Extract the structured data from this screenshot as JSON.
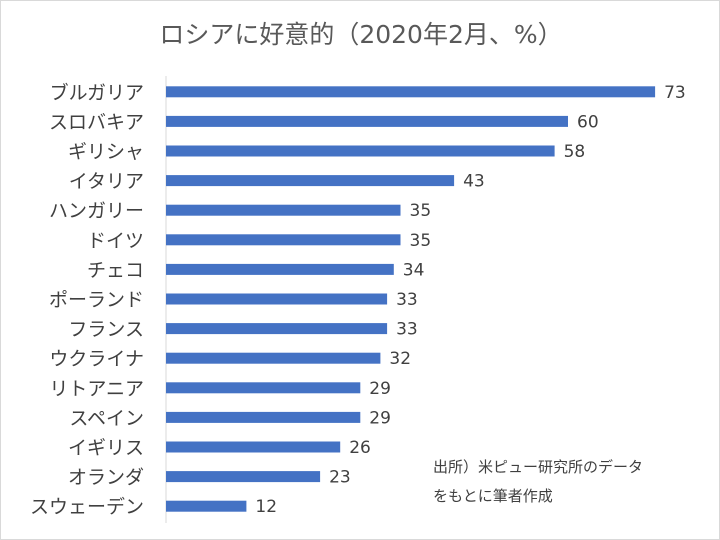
{
  "chart_data": {
    "type": "bar",
    "orientation": "horizontal",
    "title": "ロシアに好意的（2020年2月、%）",
    "categories": [
      "ブルガリア",
      "スロバキア",
      "ギリシャ",
      "イタリア",
      "ハンガリー",
      "ドイツ",
      "チェコ",
      "ポーランド",
      "フランス",
      "ウクライナ",
      "リトアニア",
      "スペイン",
      "イギリス",
      "オランダ",
      "スウェーデン"
    ],
    "values": [
      73,
      60,
      58,
      43,
      35,
      35,
      34,
      33,
      33,
      32,
      29,
      29,
      26,
      23,
      12
    ],
    "xlim": [
      0,
      80
    ],
    "xlabel": "",
    "ylabel": "",
    "bar_color": "#4472c4",
    "data_labels": true,
    "gridlines": false
  },
  "note": {
    "line1": "出所）米ピュー研究所のデータ",
    "line2": "をもとに筆者作成"
  }
}
